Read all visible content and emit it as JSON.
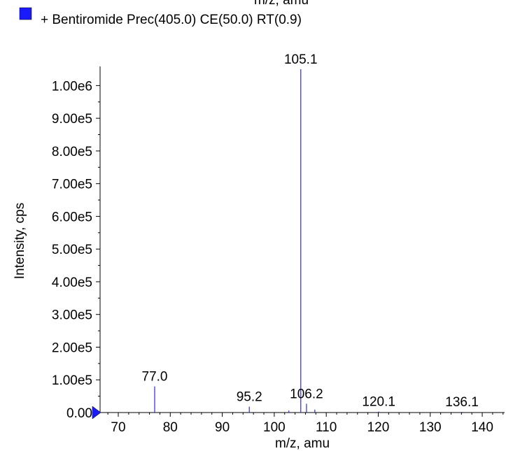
{
  "legend": {
    "swatch_color": "#1a1aff",
    "label": "+ Bentiromide Prec(405.0) CE(50.0) RT(0.9)"
  },
  "cut_top_label": "m/z, amu",
  "chart_data": {
    "type": "bar",
    "xlabel": "m/z, amu",
    "ylabel": "Intensity, cps",
    "xlim": [
      66.5,
      144.3
    ],
    "ylim": [
      0,
      1050000
    ],
    "x_ticks": [
      {
        "value": 70,
        "label": "70"
      },
      {
        "value": 80,
        "label": "80"
      },
      {
        "value": 90,
        "label": "90"
      },
      {
        "value": 100,
        "label": "100"
      },
      {
        "value": 110,
        "label": "110"
      },
      {
        "value": 120,
        "label": "120"
      },
      {
        "value": 130,
        "label": "130"
      },
      {
        "value": 140,
        "label": "140"
      }
    ],
    "y_ticks": [
      {
        "value": 0,
        "label": "0.00"
      },
      {
        "value": 100000,
        "label": "1.00e5"
      },
      {
        "value": 200000,
        "label": "2.00e5"
      },
      {
        "value": 300000,
        "label": "3.00e5"
      },
      {
        "value": 400000,
        "label": "4.00e5"
      },
      {
        "value": 500000,
        "label": "5.00e5"
      },
      {
        "value": 600000,
        "label": "6.00e5"
      },
      {
        "value": 700000,
        "label": "7.00e5"
      },
      {
        "value": 800000,
        "label": "8.00e5"
      },
      {
        "value": 900000,
        "label": "9.00e5"
      },
      {
        "value": 1000000,
        "label": "1.00e6"
      }
    ],
    "series_color": "#2a2adc",
    "peaks": [
      {
        "mz": 77.0,
        "intensity": 80000,
        "label": "77.0"
      },
      {
        "mz": 95.2,
        "intensity": 18000,
        "label": "95.2"
      },
      {
        "mz": 102.8,
        "intensity": 6000
      },
      {
        "mz": 105.1,
        "intensity": 1050000,
        "label": "105.1"
      },
      {
        "mz": 106.2,
        "intensity": 27000,
        "label": "106.2"
      },
      {
        "mz": 107.8,
        "intensity": 9000
      },
      {
        "mz": 120.1,
        "intensity": 3000,
        "label": "120.1"
      },
      {
        "mz": 136.1,
        "intensity": 2000,
        "label": "136.1"
      }
    ],
    "grid": false,
    "legend_position": "top-left"
  }
}
